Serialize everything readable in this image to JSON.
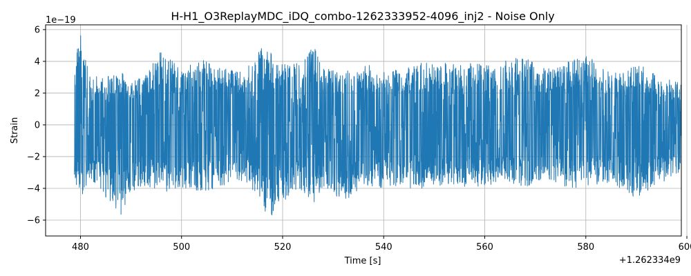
{
  "chart_data": {
    "type": "line",
    "title": "H-H1_O3ReplayMDC_iDQ_combo-1262333952-4096_inj2 - Noise Only",
    "xlabel": "Time [s]",
    "ylabel": "Strain",
    "x_offset_label": "+1.262334e9",
    "y_scale_label": "1e−19",
    "xlim": [
      473.1,
      598.9
    ],
    "ylim": [
      -7.0,
      6.3
    ],
    "x_ticks": [
      480,
      500,
      520,
      540,
      560,
      580,
      600
    ],
    "x_tick_labels": [
      "480",
      "500",
      "520",
      "540",
      "560",
      "580",
      "600"
    ],
    "y_ticks": [
      -6,
      -4,
      -2,
      0,
      2,
      4,
      6
    ],
    "y_tick_labels": [
      "−6",
      "−4",
      "−2",
      "0",
      "2",
      "4",
      "6"
    ],
    "grid": true,
    "line_color": "#1f77b4",
    "series": [
      {
        "x_range": [
          478.8,
          598.8
        ],
        "envelope_x": [
          478.8,
          480.0,
          482.0,
          485.0,
          488.0,
          490.0,
          493.0,
          496.0,
          500.0,
          504.0,
          508.0,
          512.0,
          516.0,
          517.0,
          520.0,
          524.0,
          526.0,
          528.0,
          532.0,
          536.0,
          540.0,
          544.0,
          548.0,
          552.0,
          556.0,
          560.0,
          564.0,
          568.0,
          572.0,
          576.0,
          580.0,
          584.0,
          588.0,
          590.0,
          594.0,
          598.8
        ],
        "envelope_upper": [
          4.1,
          5.7,
          3.0,
          3.2,
          3.3,
          3.0,
          3.2,
          4.7,
          3.5,
          4.3,
          3.6,
          3.4,
          5.0,
          5.1,
          3.8,
          3.9,
          5.2,
          3.6,
          3.3,
          3.9,
          3.4,
          3.5,
          4.0,
          3.9,
          3.9,
          3.8,
          4.1,
          4.3,
          3.5,
          3.9,
          4.5,
          3.5,
          3.3,
          4.1,
          3.1,
          2.7
        ],
        "envelope_lower": [
          -3.4,
          -4.8,
          -3.4,
          -4.6,
          -5.7,
          -4.2,
          -3.8,
          -4.3,
          -4.0,
          -4.2,
          -3.9,
          -3.5,
          -4.7,
          -6.4,
          -4.8,
          -4.1,
          -5.1,
          -3.9,
          -4.9,
          -3.8,
          -4.0,
          -4.1,
          -4.0,
          -3.8,
          -3.9,
          -4.0,
          -3.4,
          -4.1,
          -3.3,
          -4.0,
          -3.9,
          -3.6,
          -4.2,
          -4.8,
          -3.8,
          -3.0
        ]
      }
    ]
  }
}
